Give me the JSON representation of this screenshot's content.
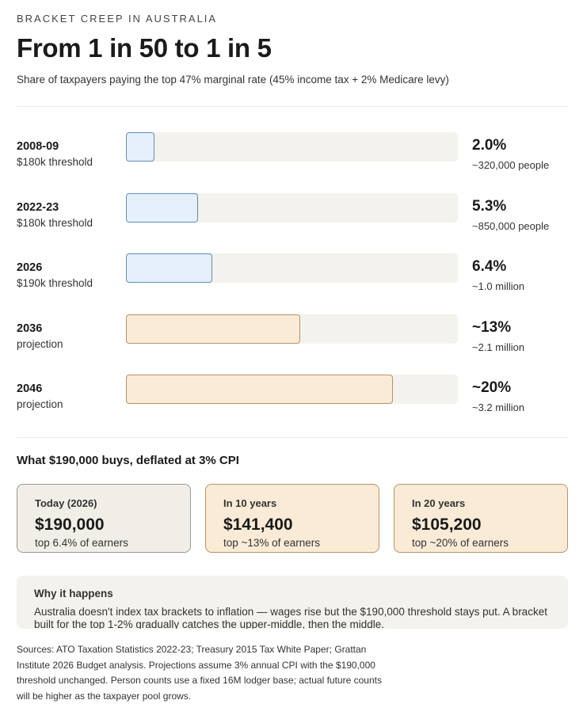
{
  "header": {
    "eyebrow": "BRACKET CREEP IN AUSTRALIA",
    "title": "From 1 in 50 to 1 in 5",
    "subtitle": "Share of taxpayers paying the top 47% marginal rate (45% income tax + 2% Medicare levy)"
  },
  "colors": {
    "historical_fill": "#e5f0fb",
    "historical_border": "#5f8dc0",
    "projection_fill": "#faebd7",
    "projection_border": "#b89266",
    "track": "#f4f2ec"
  },
  "chart_data": {
    "type": "bar",
    "orientation": "horizontal",
    "xlim": [
      0,
      25
    ],
    "grid": false,
    "categories": [
      "2008-09",
      "2022-23",
      "2026",
      "2036",
      "2046"
    ],
    "values": [
      2.0,
      5.3,
      6.4,
      13,
      20
    ],
    "notes": [
      "$180k threshold",
      "$180k threshold",
      "$190k threshold",
      "projection",
      "projection"
    ],
    "value_labels": [
      "2.0%",
      "5.3%",
      "6.4%",
      "~13%",
      "~20%"
    ],
    "people_labels": [
      "~320,000 people",
      "~850,000 people",
      "~1.0 million",
      "~2.1 million",
      "~3.2 million"
    ],
    "kinds": [
      "past",
      "past",
      "past",
      "proj",
      "proj"
    ]
  },
  "deflation": {
    "heading": "What $190,000 buys, deflated at 3% CPI",
    "cards": [
      {
        "label": "Today (2026)",
        "value": "$190,000",
        "note": "top 6.4% of earners"
      },
      {
        "label": "In 10 years",
        "value": "$141,400",
        "note": "top ~13% of earners"
      },
      {
        "label": "In 20 years",
        "value": "$105,200",
        "note": "top ~20% of earners"
      }
    ]
  },
  "why": {
    "title": "Why it happens",
    "body": "Australia doesn't index tax brackets to inflation — wages rise but the $190,000 threshold stays put. A bracket built for the top 1-2% gradually catches the upper-middle, then the middle."
  },
  "sources": "Sources: ATO Taxation Statistics 2022-23; Treasury 2015 Tax White Paper; Grattan Institute 2026 Budget analysis. Projections assume 3% annual CPI with the $190,000 threshold unchanged. Person counts use a fixed 16M lodger base; actual future counts will be higher as the taxpayer pool grows."
}
